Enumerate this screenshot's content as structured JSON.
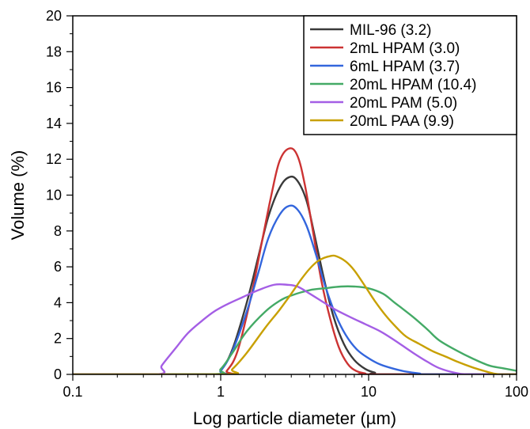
{
  "chart_data": {
    "type": "line",
    "title": "",
    "xlabel": "Log particle diameter (µm)",
    "ylabel": "Volume (%)",
    "xscale": "log",
    "xlim": [
      0.1,
      100
    ],
    "ylim": [
      0,
      20
    ],
    "xticks": [
      0.1,
      1,
      10,
      100
    ],
    "xtick_labels": [
      "0.1",
      "1",
      "10",
      "100"
    ],
    "yticks": [
      0,
      2,
      4,
      6,
      8,
      10,
      12,
      14,
      16,
      18,
      20
    ],
    "ytick_labels": [
      "0",
      "2",
      "4",
      "6",
      "8",
      "10",
      "12",
      "14",
      "16",
      "18",
      "20"
    ],
    "grid": false,
    "legend_position": "top-right",
    "series": [
      {
        "name": "MIL-96 (3.2)",
        "color": "#3a3a3a",
        "x": [
          0.1,
          0.9,
          1.0,
          1.2,
          1.5,
          1.8,
          2.1,
          2.5,
          2.9,
          3.3,
          3.8,
          4.3,
          5.0,
          5.8,
          6.8,
          8.0,
          9.5,
          11.0,
          12.5,
          100
        ],
        "y": [
          0,
          0,
          0.2,
          1.4,
          4.0,
          6.6,
          8.8,
          10.4,
          11.0,
          10.8,
          9.7,
          7.8,
          5.3,
          3.2,
          1.7,
          0.8,
          0.3,
          0.1,
          0,
          0
        ]
      },
      {
        "name": "2mL HPAM (3.0)",
        "color": "#cc3333",
        "x": [
          0.1,
          1.0,
          1.1,
          1.3,
          1.6,
          1.9,
          2.2,
          2.5,
          2.9,
          3.3,
          3.7,
          4.2,
          4.8,
          5.5,
          6.3,
          7.2,
          8.2,
          9.5,
          10.5,
          100
        ],
        "y": [
          0,
          0,
          0.2,
          1.3,
          4.3,
          7.4,
          10.0,
          11.9,
          12.6,
          12.2,
          10.6,
          8.0,
          5.2,
          3.1,
          1.5,
          0.6,
          0.2,
          0.05,
          0,
          0
        ]
      },
      {
        "name": "6mL HPAM (3.7)",
        "color": "#3366dd",
        "x": [
          0.1,
          0.9,
          1.0,
          1.2,
          1.5,
          1.8,
          2.1,
          2.5,
          2.9,
          3.3,
          3.8,
          4.4,
          5.1,
          6.0,
          7.0,
          8.3,
          10.0,
          12.0,
          15.0,
          18.0,
          22.0,
          26.0,
          100
        ],
        "y": [
          0,
          0,
          0.2,
          1.3,
          3.5,
          5.7,
          7.6,
          8.9,
          9.4,
          9.2,
          8.3,
          6.7,
          4.9,
          3.3,
          2.2,
          1.4,
          0.9,
          0.55,
          0.3,
          0.15,
          0.05,
          0,
          0
        ]
      },
      {
        "name": "20mL HPAM (10.4)",
        "color": "#44aa66",
        "x": [
          0.1,
          0.85,
          1.0,
          1.2,
          1.5,
          2.0,
          2.5,
          3.0,
          4.0,
          5.0,
          6.5,
          8.0,
          10.0,
          12.5,
          15.0,
          20.0,
          25.0,
          30.0,
          40.0,
          50.0,
          65.0,
          80.0,
          100.0
        ],
        "y": [
          0,
          0,
          0.3,
          1.2,
          2.4,
          3.5,
          4.1,
          4.4,
          4.7,
          4.8,
          4.9,
          4.9,
          4.8,
          4.5,
          4.0,
          3.2,
          2.5,
          1.9,
          1.3,
          0.9,
          0.5,
          0.35,
          0.2
        ]
      },
      {
        "name": "20mL PAM (5.0)",
        "color": "#a45ee5",
        "x": [
          0.1,
          0.37,
          0.4,
          0.5,
          0.6,
          0.75,
          0.9,
          1.1,
          1.4,
          1.8,
          2.3,
          2.8,
          3.3,
          4.0,
          5.0,
          6.0,
          7.5,
          9.5,
          12.0,
          15.0,
          20.0,
          25.0,
          30.0,
          38.0,
          48.0,
          100
        ],
        "y": [
          0,
          0,
          0.5,
          1.5,
          2.3,
          3.0,
          3.5,
          3.9,
          4.3,
          4.7,
          5.0,
          5.0,
          4.9,
          4.5,
          4.0,
          3.6,
          3.2,
          2.8,
          2.4,
          1.9,
          1.2,
          0.7,
          0.35,
          0.1,
          0,
          0
        ]
      },
      {
        "name": "20mL PAA (9.9)",
        "color": "#c8a000",
        "x": [
          0.1,
          1.05,
          1.2,
          1.5,
          2.0,
          2.5,
          3.0,
          3.5,
          4.0,
          4.5,
          5.0,
          5.5,
          6.0,
          7.0,
          8.0,
          9.5,
          11.0,
          13.0,
          15.5,
          18.0,
          22.0,
          27.0,
          33.0,
          40.0,
          50.0,
          60.0,
          70.0,
          80.0,
          100
        ],
        "y": [
          0,
          0,
          0.3,
          1.2,
          2.6,
          3.6,
          4.5,
          5.3,
          5.9,
          6.3,
          6.5,
          6.6,
          6.6,
          6.3,
          5.8,
          4.9,
          4.1,
          3.3,
          2.6,
          2.1,
          1.7,
          1.3,
          1.0,
          0.7,
          0.4,
          0.2,
          0.05,
          0,
          0
        ]
      }
    ]
  }
}
